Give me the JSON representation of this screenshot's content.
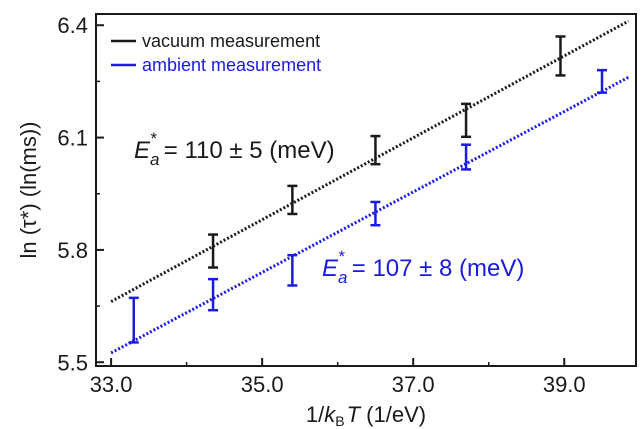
{
  "colors": {
    "vacuum": "#1a1a1a",
    "ambient": "#1b1be0",
    "axis": "#1a1a1a"
  },
  "chart_data": {
    "type": "scatter",
    "title": "",
    "xlabel": "1/k_B T (1/eV)",
    "xlabel_parts": {
      "prefix": "1/",
      "k": "k",
      "sub": "B",
      "t": "T",
      "unit": " (1/eV)"
    },
    "ylabel": "ln (τ*) (ln(ms))",
    "xlim": [
      32.8,
      39.95
    ],
    "ylim": [
      5.49,
      6.43
    ],
    "x_ticks": [
      33.0,
      35.0,
      37.0,
      39.0
    ],
    "x_tick_labels": [
      "33.0",
      "35.0",
      "37.0",
      "39.0"
    ],
    "y_ticks": [
      5.5,
      5.8,
      6.1,
      6.4
    ],
    "y_tick_labels": [
      "5.5",
      "5.8",
      "6.1",
      "6.4"
    ],
    "legend": {
      "placement": "top-left",
      "entries": [
        "vacuum measurement",
        "ambient measurement"
      ]
    },
    "series": [
      {
        "name": "vacuum measurement",
        "color_key": "vacuum",
        "points": [
          {
            "x": 34.35,
            "y_low": 5.753,
            "y_high": 5.841
          },
          {
            "x": 35.4,
            "y_low": 5.896,
            "y_high": 5.971
          },
          {
            "x": 36.5,
            "y_low": 6.029,
            "y_high": 6.104
          },
          {
            "x": 37.7,
            "y_low": 6.102,
            "y_high": 6.19
          },
          {
            "x": 38.95,
            "y_low": 6.266,
            "y_high": 6.37
          }
        ],
        "fit": {
          "x": [
            33.0,
            39.85
          ],
          "y": [
            5.662,
            6.411
          ]
        },
        "annotation": {
          "E": "E",
          "sub": "a",
          "sup": "*",
          "text": " = 110 ± 5 (meV)"
        }
      },
      {
        "name": "ambient measurement",
        "color_key": "ambient",
        "points": [
          {
            "x": 33.3,
            "y_low": 5.553,
            "y_high": 5.672
          },
          {
            "x": 34.35,
            "y_low": 5.639,
            "y_high": 5.722
          },
          {
            "x": 35.4,
            "y_low": 5.705,
            "y_high": 5.786
          },
          {
            "x": 36.5,
            "y_low": 5.866,
            "y_high": 5.928
          },
          {
            "x": 37.7,
            "y_low": 6.015,
            "y_high": 6.081
          },
          {
            "x": 39.5,
            "y_low": 6.22,
            "y_high": 6.28
          }
        ],
        "fit": {
          "x": [
            33.0,
            39.85
          ],
          "y": [
            5.525,
            6.261
          ]
        },
        "annotation": {
          "E": "E",
          "sub": "a",
          "sup": "*",
          "text": " = 107 ± 8 (meV)"
        }
      }
    ]
  }
}
